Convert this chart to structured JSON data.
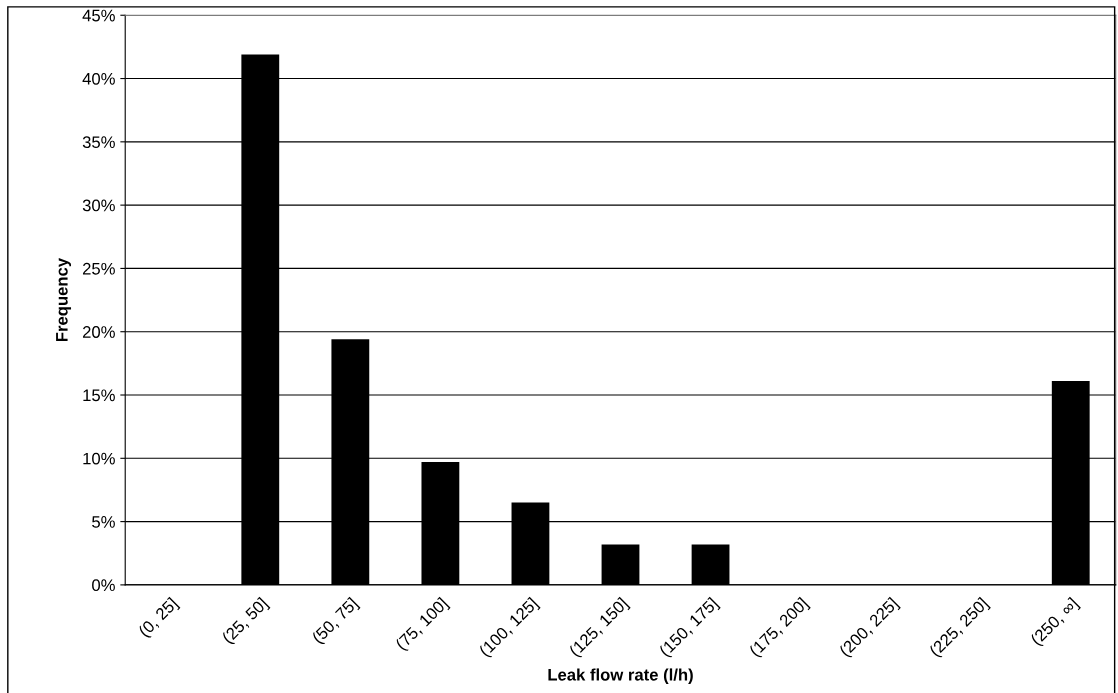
{
  "chart_data": {
    "type": "bar",
    "xlabel": "Leak flow rate (l/h)",
    "ylabel": "Frequency",
    "categories": [
      "(0, 25]",
      "(25, 50]",
      "(50, 75]",
      "(75, 100]",
      "(100, 125]",
      "(125, 150]",
      "(150, 175]",
      "(175, 200]",
      "(200, 225]",
      "(225, 250]",
      "(250, ∞]"
    ],
    "values": [
      0,
      41.9,
      19.4,
      9.7,
      6.5,
      3.2,
      3.2,
      0,
      0,
      0,
      16.1
    ],
    "color": "#000000",
    "ylim": [
      0,
      45
    ],
    "yticks": [
      {
        "value": 0,
        "label": "0%"
      },
      {
        "value": 5,
        "label": "5%"
      },
      {
        "value": 10,
        "label": "10%"
      },
      {
        "value": 15,
        "label": "15%"
      },
      {
        "value": 20,
        "label": "20%"
      },
      {
        "value": 25,
        "label": "25%"
      },
      {
        "value": 30,
        "label": "30%"
      },
      {
        "value": 35,
        "label": "35%"
      },
      {
        "value": 40,
        "label": "40%"
      },
      {
        "value": 45,
        "label": "45%"
      }
    ],
    "grid": "y",
    "legend": false
  }
}
